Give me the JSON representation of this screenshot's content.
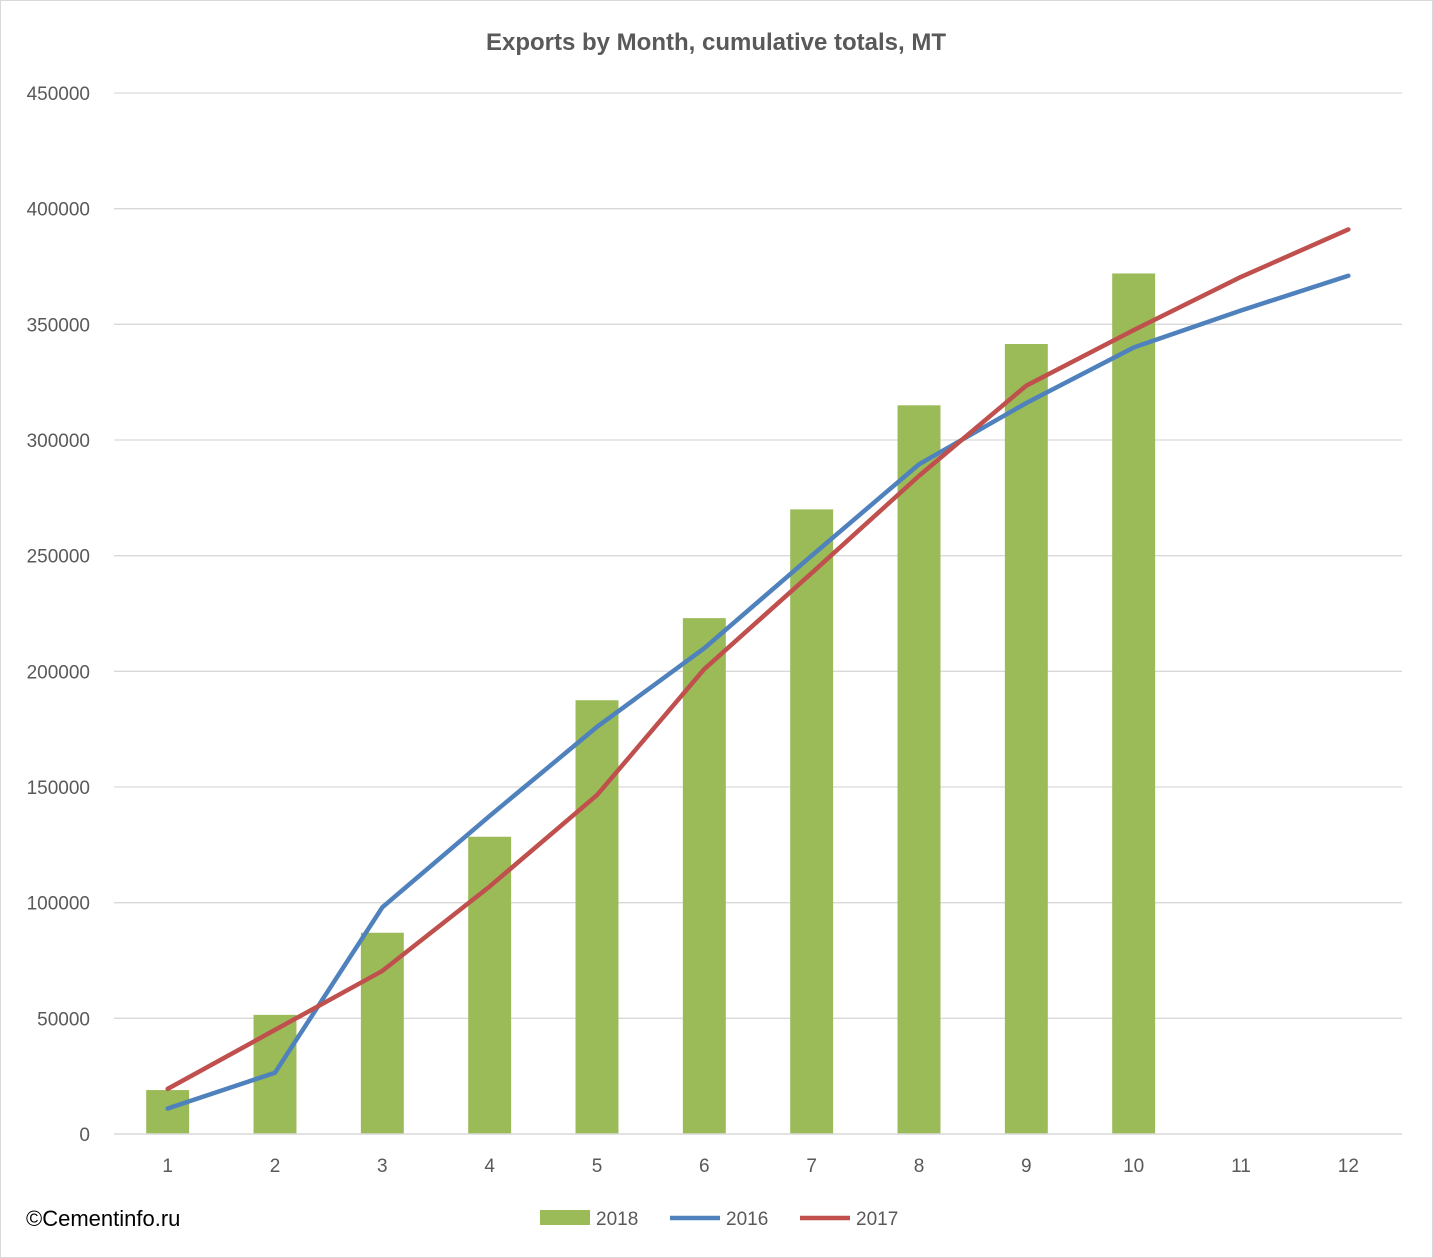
{
  "credit": "©Cementinfo.ru",
  "chart_data": {
    "type": "bar",
    "title": "Exports by Month, cumulative totals, MT",
    "xlabel": "",
    "ylabel": "",
    "categories": [
      "1",
      "2",
      "3",
      "4",
      "5",
      "6",
      "7",
      "8",
      "9",
      "10",
      "11",
      "12"
    ],
    "ylim": [
      0,
      450000
    ],
    "yticks": [
      "0",
      "50000",
      "100000",
      "150000",
      "200000",
      "250000",
      "300000",
      "350000",
      "400000",
      "450000"
    ],
    "grid": true,
    "legend_position": "bottom",
    "series": [
      {
        "name": "2018",
        "kind": "bar",
        "color": "#9bbb59",
        "values": [
          19000,
          51500,
          87000,
          128500,
          187500,
          223000,
          270000,
          315000,
          341500,
          372000,
          null,
          null
        ]
      },
      {
        "name": "2016",
        "kind": "line",
        "color": "#4f81bd",
        "values": [
          11000,
          26500,
          98000,
          137500,
          176000,
          210000,
          250000,
          289500,
          316000,
          340000,
          356000,
          371000
        ]
      },
      {
        "name": "2017",
        "kind": "line",
        "color": "#c0504d",
        "values": [
          19500,
          45000,
          70500,
          107000,
          146500,
          201000,
          242500,
          284500,
          323500,
          347500,
          370500,
          391000
        ]
      }
    ]
  }
}
